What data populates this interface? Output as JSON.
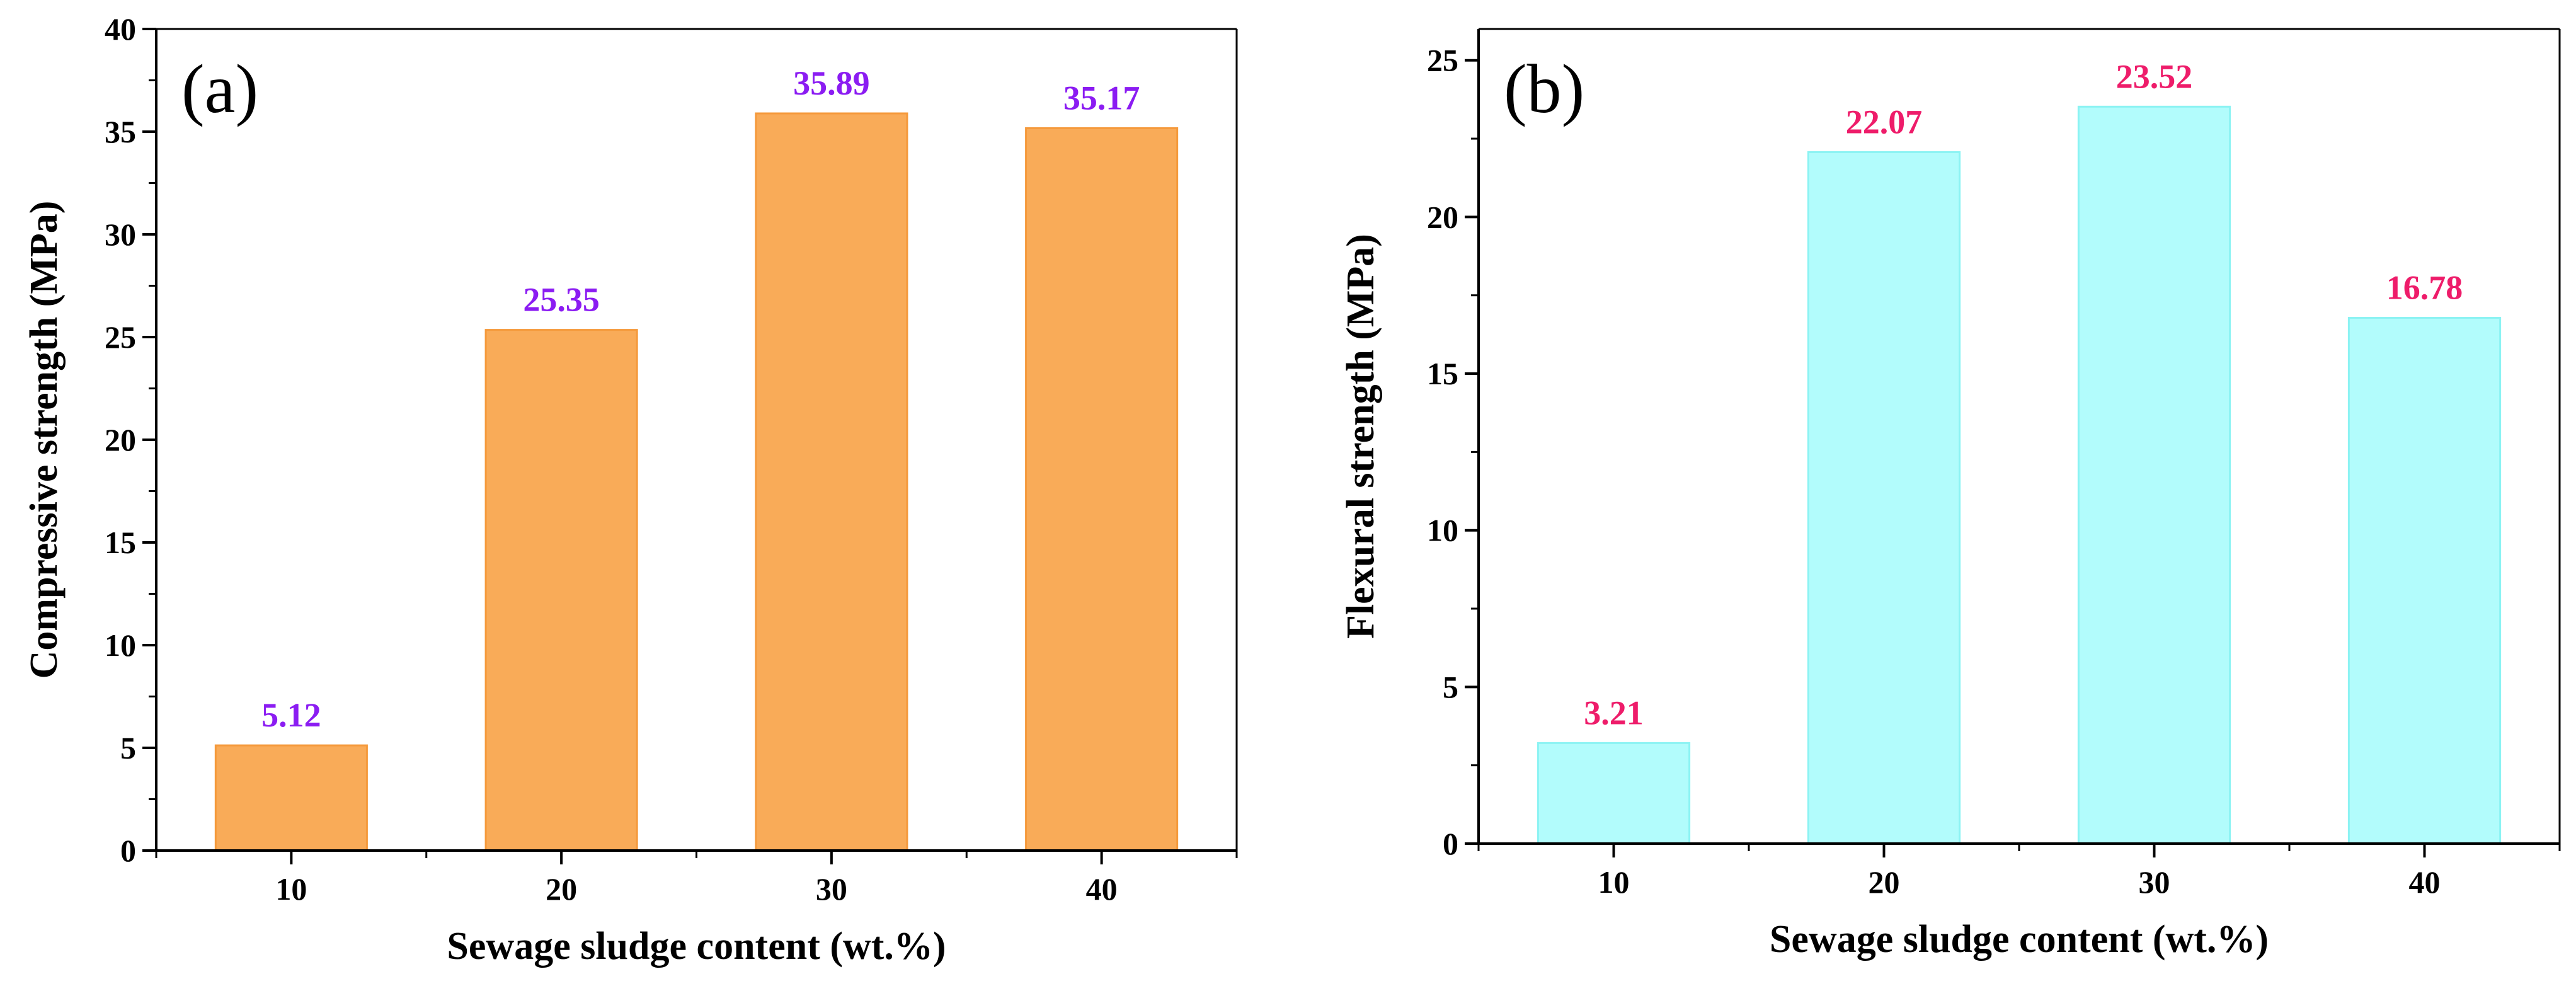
{
  "chart_data": [
    {
      "type": "bar",
      "panel_label": "(a)",
      "categories": [
        "10",
        "20",
        "30",
        "40"
      ],
      "values": [
        5.12,
        25.35,
        35.89,
        35.17
      ],
      "value_labels": [
        "5.12",
        "25.35",
        "35.89",
        "35.17"
      ],
      "xlabel": "Sewage sludge content (wt.%)",
      "ylabel": "Compressive strength (MPa)",
      "ylim": [
        0,
        40
      ],
      "yticks": [
        0,
        5,
        10,
        15,
        20,
        25,
        30,
        35,
        40
      ],
      "ytick_labels": [
        "0",
        "5",
        "10",
        "15",
        "20",
        "25",
        "30",
        "35",
        "40"
      ],
      "bar_color": "#f9ab58",
      "bar_edge_color": "#f59a3c",
      "label_color": "#8b1cf2",
      "grid": false
    },
    {
      "type": "bar",
      "panel_label": "(b)",
      "categories": [
        "10",
        "20",
        "30",
        "40"
      ],
      "values": [
        3.21,
        22.07,
        23.52,
        16.78
      ],
      "value_labels": [
        "3.21",
        "22.07",
        "23.52",
        "16.78"
      ],
      "xlabel": "Sewage sludge content (wt.%)",
      "ylabel": "Flexural strength (MPa)",
      "ylim": [
        0,
        26
      ],
      "yticks": [
        0,
        5,
        10,
        15,
        20,
        25
      ],
      "ytick_labels": [
        "0",
        "5",
        "10",
        "15",
        "20",
        "25"
      ],
      "bar_color": "#b2fcfc",
      "bar_edge_color": "#8cf3f3",
      "label_color": "#ee1c6a",
      "grid": false
    }
  ]
}
